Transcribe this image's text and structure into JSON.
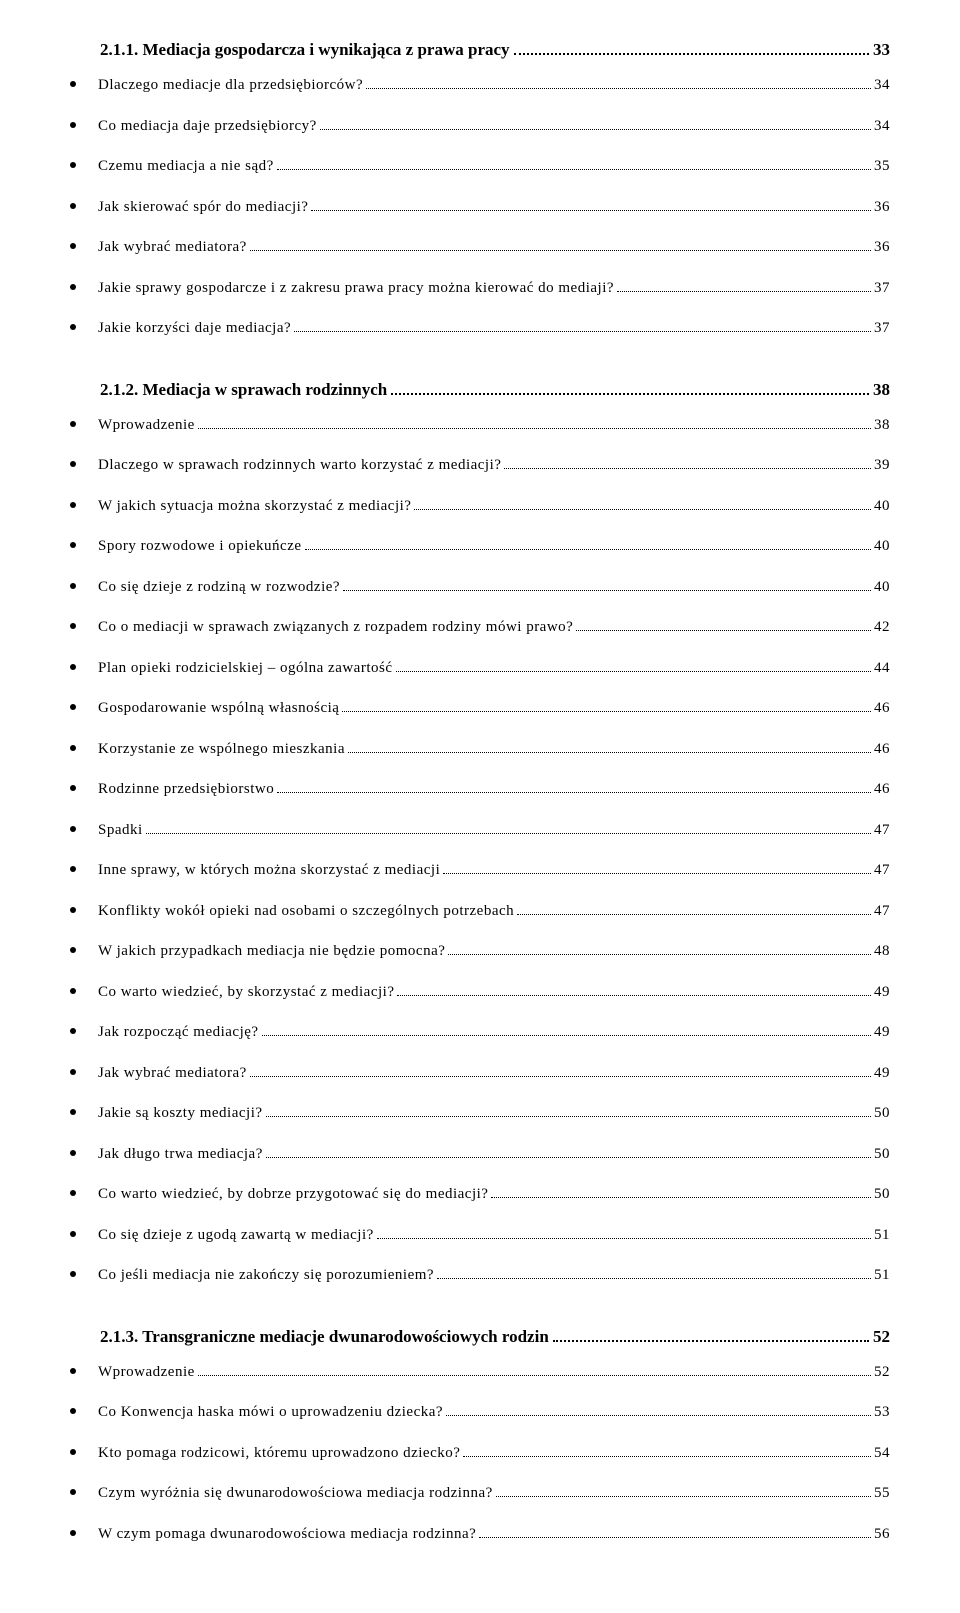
{
  "section1": {
    "title": "2.1.1. Mediacja gospodarcza i wynikająca z prawa pracy",
    "page": "33",
    "items": [
      {
        "text": "Dlaczego mediacje dla przedsiębiorców?",
        "page": "34"
      },
      {
        "text": "Co mediacja daje przedsiębiorcy?",
        "page": "34"
      },
      {
        "text": "Czemu mediacja a nie sąd?",
        "page": "35"
      },
      {
        "text": "Jak skierować spór do mediacji?",
        "page": "36"
      },
      {
        "text": "Jak wybrać mediatora?",
        "page": "36"
      },
      {
        "text": "Jakie sprawy gospodarcze i z zakresu prawa pracy można kierować do mediaji?",
        "page": "37"
      },
      {
        "text": "Jakie korzyści daje mediacja?",
        "page": "37"
      }
    ]
  },
  "section2": {
    "title": "2.1.2. Mediacja w sprawach rodzinnych",
    "page": "38",
    "items": [
      {
        "text": "Wprowadzenie",
        "page": "38"
      },
      {
        "text": "Dlaczego w sprawach rodzinnych warto korzystać z mediacji?",
        "page": "39"
      },
      {
        "text": "W jakich sytuacja można skorzystać z mediacji?",
        "page": "40"
      },
      {
        "text": "Spory rozwodowe i opiekuńcze",
        "page": "40"
      },
      {
        "text": "Co się dzieje z rodziną w rozwodzie?",
        "page": "40"
      },
      {
        "text": "Co o mediacji w sprawach związanych z rozpadem rodziny mówi prawo?",
        "page": "42"
      },
      {
        "text": "Plan opieki rodzicielskiej – ogólna zawartość",
        "page": "44"
      },
      {
        "text": "Gospodarowanie wspólną własnością",
        "page": "46"
      },
      {
        "text": "Korzystanie ze wspólnego mieszkania",
        "page": "46"
      },
      {
        "text": "Rodzinne przedsiębiorstwo",
        "page": "46"
      },
      {
        "text": "Spadki",
        "page": "47"
      },
      {
        "text": "Inne sprawy, w których można skorzystać z mediacji",
        "page": "47"
      },
      {
        "text": "Konflikty wokół opieki nad osobami o szczególnych potrzebach",
        "page": "47"
      },
      {
        "text": "W jakich przypadkach mediacja nie będzie pomocna?",
        "page": "48"
      },
      {
        "text": "Co warto wiedzieć, by skorzystać z mediacji?",
        "page": "49"
      },
      {
        "text": "Jak rozpocząć mediację?",
        "page": "49"
      },
      {
        "text": "Jak wybrać mediatora?",
        "page": "49"
      },
      {
        "text": "Jakie są koszty mediacji?",
        "page": "50"
      },
      {
        "text": "Jak długo trwa mediacja?",
        "page": "50"
      },
      {
        "text": "Co warto wiedzieć, by dobrze przygotować się do mediacji?",
        "page": "50"
      },
      {
        "text": "Co się dzieje z ugodą zawartą w mediacji?",
        "page": "51"
      },
      {
        "text": "Co jeśli mediacja nie zakończy się porozumieniem?",
        "page": "51"
      }
    ]
  },
  "section3": {
    "title": "2.1.3. Transgraniczne mediacje dwunarodowościowych rodzin",
    "page": "52",
    "items": [
      {
        "text": "Wprowadzenie",
        "page": "52"
      },
      {
        "text": "Co Konwencja haska mówi o uprowadzeniu dziecka?",
        "page": "53"
      },
      {
        "text": "Kto pomaga rodzicowi, któremu uprowadzono dziecko?",
        "page": "54"
      },
      {
        "text": "Czym wyróżnia się dwunarodowościowa mediacja rodzinna?",
        "page": "55"
      },
      {
        "text": "W czym pomaga dwunarodowościowa mediacja rodzinna?",
        "page": "56"
      }
    ]
  }
}
